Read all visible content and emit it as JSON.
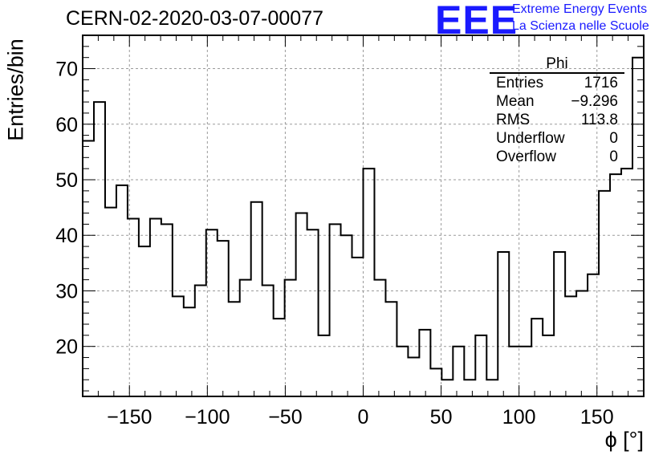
{
  "run_title": "CERN-02-2020-03-07-00077",
  "brand": {
    "logo": "EEE",
    "line1": "Extreme Energy Events",
    "line2": "La Scienza nelle Scuole",
    "color": "#1a1aff"
  },
  "stats": {
    "title": "Phi",
    "rows": [
      {
        "label": "Entries",
        "value": "1716"
      },
      {
        "label": "Mean",
        "value": "−9.296"
      },
      {
        "label": "RMS",
        "value": "113.8"
      },
      {
        "label": "Underflow",
        "value": "0"
      },
      {
        "label": "Overflow",
        "value": "0"
      }
    ]
  },
  "chart_data": {
    "type": "bar",
    "histogram": true,
    "bin_edges_start": -180,
    "bin_width": 7.2,
    "values": [
      57,
      64,
      45,
      49,
      43,
      38,
      43,
      42,
      29,
      27,
      31,
      41,
      39,
      28,
      32,
      46,
      31,
      25,
      32,
      44,
      41,
      22,
      42,
      40,
      36,
      52,
      32,
      28,
      20,
      18,
      23,
      16,
      14,
      20,
      14,
      22,
      14,
      37,
      20,
      20,
      25,
      22,
      37,
      29,
      30,
      33,
      48,
      51,
      52,
      72
    ],
    "xlabel": "ϕ [°]",
    "ylabel": "Entries/bin",
    "xlim": [
      -180,
      180
    ],
    "ylim": [
      11,
      76
    ],
    "xticks": [
      -150,
      -100,
      -50,
      0,
      50,
      100,
      150
    ],
    "xtick_labels": [
      "−150",
      "−100",
      "−50",
      "0",
      "50",
      "100",
      "150"
    ],
    "yticks": [
      20,
      30,
      40,
      50,
      60,
      70
    ],
    "ytick_labels": [
      "20",
      "30",
      "40",
      "50",
      "60",
      "70"
    ],
    "grid": true,
    "line_color": "#000000"
  }
}
